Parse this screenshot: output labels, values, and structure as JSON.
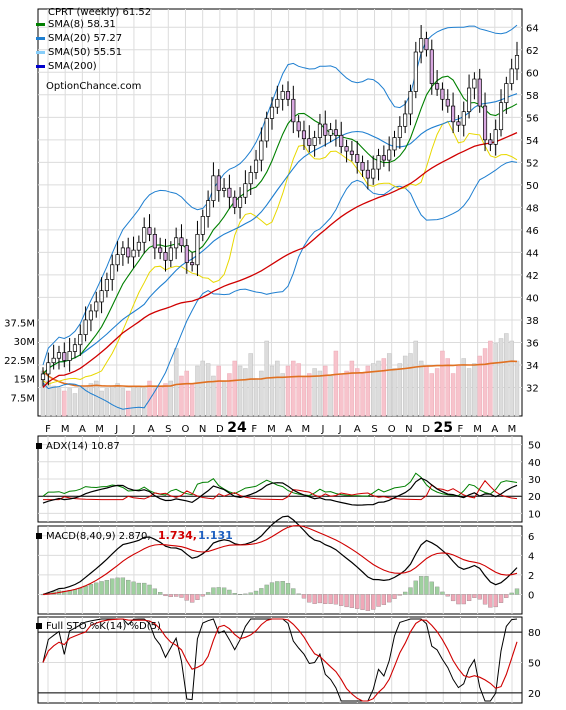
{
  "chart_data": {
    "type": "stock-chart",
    "symbol_label": "CPRT (weekly)",
    "last_price": "61.52",
    "price_axis": {
      "ylim": [
        30,
        65
      ],
      "ticks": [
        32,
        34,
        36,
        38,
        40,
        42,
        44,
        46,
        48,
        50,
        52,
        54,
        56,
        58,
        60,
        62,
        64
      ]
    },
    "volume_axis": {
      "ticks": [
        "7.5M",
        "15M",
        "22.5M",
        "30M",
        "37.5M"
      ],
      "values": [
        7.5,
        15,
        22.5,
        30,
        37.5
      ]
    },
    "x_labels": [
      "F",
      "M",
      "A",
      "M",
      "J",
      "J",
      "A",
      "S",
      "O",
      "N",
      "D",
      "24",
      "F",
      "M",
      "A",
      "M",
      "J",
      "J",
      "A",
      "S",
      "O",
      "N",
      "D",
      "25",
      "F",
      "M",
      "A",
      "M"
    ],
    "legend": [
      {
        "label": "SMA(8)",
        "value": "58.31",
        "color": "#008000"
      },
      {
        "label": "SMA(20)",
        "value": "57.27",
        "color": "#1f7fd0"
      },
      {
        "label": "SMA(50)",
        "value": "55.51",
        "color": "#87cefa"
      },
      {
        "label": "SMA(200)",
        "value": "",
        "color": "#0000cc"
      }
    ],
    "watermark": "OptionChance.com",
    "close": [
      33.2,
      34.2,
      34.6,
      35.1,
      34.4,
      35.2,
      35.8,
      36.7,
      38.0,
      38.8,
      39.6,
      40.6,
      41.6,
      42.9,
      43.8,
      44.4,
      43.6,
      44.2,
      44.9,
      46.2,
      45.6,
      44.4,
      44.0,
      43.3,
      44.4,
      45.3,
      44.6,
      43.1,
      42.9,
      45.6,
      47.2,
      48.6,
      50.8,
      49.5,
      49.7,
      48.9,
      48.0,
      48.9,
      50.1,
      51.1,
      52.2,
      53.9,
      55.9,
      56.9,
      57.6,
      58.3,
      57.6,
      55.6,
      54.8,
      54.1,
      53.5,
      54.2,
      55.4,
      54.4,
      54.9,
      54.4,
      53.4,
      53.0,
      52.7,
      52.0,
      51.3,
      50.6,
      51.4,
      52.6,
      52.2,
      53.1,
      54.2,
      55.2,
      56.3,
      58.3,
      61.8,
      63.0,
      62.0,
      59.0,
      58.5,
      57.6,
      57.0,
      55.6,
      55.3,
      56.5,
      58.6,
      59.4,
      57.0,
      54.0,
      53.6,
      54.9,
      57.3,
      59.0,
      60.3,
      61.5
    ],
    "volume_millions": [
      18,
      14,
      12,
      11,
      10,
      11,
      9,
      11,
      12,
      13,
      14,
      10,
      11,
      12,
      13,
      11,
      10,
      12,
      12,
      11,
      14,
      11,
      12,
      13,
      14,
      27,
      16,
      18,
      13,
      20,
      22,
      21,
      16,
      20,
      14,
      17,
      22,
      20,
      19,
      25,
      15,
      18,
      30,
      20,
      22,
      17,
      20,
      22,
      21,
      16,
      17,
      19,
      18,
      20,
      16,
      26,
      17,
      18,
      22,
      19,
      17,
      20,
      21,
      22,
      23,
      25,
      19,
      21,
      24,
      25,
      30,
      22,
      20,
      17,
      19,
      26,
      23,
      17,
      20,
      23,
      19,
      21,
      24,
      27,
      30,
      29,
      31,
      33,
      30,
      22
    ],
    "adx": {
      "label": "ADX(14)",
      "value": "10.87",
      "ylim": [
        5,
        55
      ],
      "ticks": [
        10,
        20,
        30,
        40,
        50
      ]
    },
    "macd": {
      "label": "MACD(8,40,9)",
      "macd_value": "2.870",
      "signal_value": "1.734",
      "hist_value": "1.131",
      "ylim": [
        -2,
        7
      ],
      "ticks": [
        0,
        2,
        4,
        6
      ]
    },
    "stochastic": {
      "label": "Full STO %K(14) %D(5)",
      "ylim": [
        10,
        95
      ],
      "ticks": [
        20,
        50,
        80
      ]
    }
  }
}
